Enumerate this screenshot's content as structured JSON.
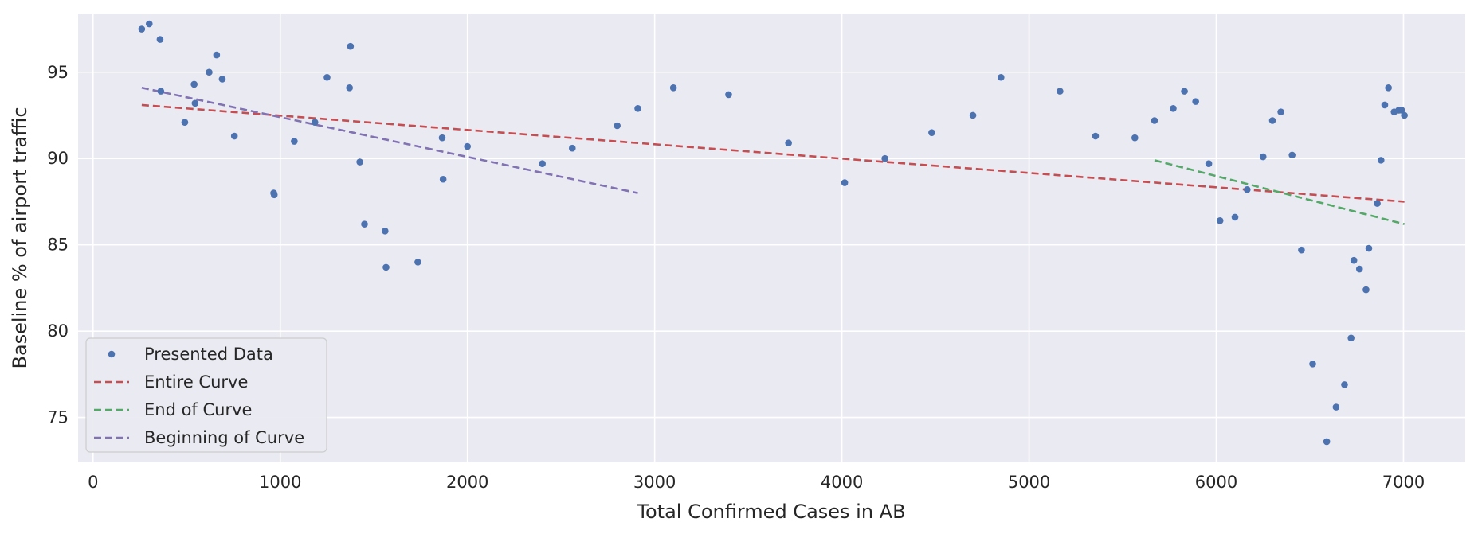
{
  "chart_data": {
    "type": "scatter",
    "title": "",
    "xlabel": "Total Confirmed Cases in AB",
    "ylabel": "Baseline % of airport traffic",
    "xlim": [
      -80,
      7330
    ],
    "ylim": [
      72.4,
      98.4
    ],
    "xticks": [
      0,
      1000,
      2000,
      3000,
      4000,
      5000,
      6000,
      7000
    ],
    "yticks": [
      75,
      80,
      85,
      90,
      95
    ],
    "grid": true,
    "legend_position": "lower-left",
    "background_color": "#eaeaf2",
    "series": [
      {
        "name": "Presented Data",
        "kind": "points",
        "color": "#4c72b0",
        "points": [
          [
            260,
            97.5
          ],
          [
            300,
            97.8
          ],
          [
            358,
            96.9
          ],
          [
            362,
            93.9
          ],
          [
            490,
            92.1
          ],
          [
            540,
            94.3
          ],
          [
            545,
            93.2
          ],
          [
            620,
            95.0
          ],
          [
            660,
            96.0
          ],
          [
            690,
            94.6
          ],
          [
            755,
            91.3
          ],
          [
            965,
            88.0
          ],
          [
            968,
            87.9
          ],
          [
            1075,
            91.0
          ],
          [
            1185,
            92.1
          ],
          [
            1250,
            94.7
          ],
          [
            1370,
            94.1
          ],
          [
            1375,
            96.5
          ],
          [
            1425,
            89.8
          ],
          [
            1450,
            86.2
          ],
          [
            1560,
            85.8
          ],
          [
            1565,
            83.7
          ],
          [
            1735,
            84.0
          ],
          [
            1865,
            91.2
          ],
          [
            1870,
            88.8
          ],
          [
            2000,
            90.7
          ],
          [
            2400,
            89.7
          ],
          [
            2560,
            90.6
          ],
          [
            2800,
            91.9
          ],
          [
            2910,
            92.9
          ],
          [
            3100,
            94.1
          ],
          [
            3395,
            93.7
          ],
          [
            3715,
            90.9
          ],
          [
            4015,
            88.6
          ],
          [
            4230,
            90.0
          ],
          [
            4480,
            91.5
          ],
          [
            4700,
            92.5
          ],
          [
            4850,
            94.7
          ],
          [
            5165,
            93.9
          ],
          [
            5355,
            91.3
          ],
          [
            5565,
            91.2
          ],
          [
            5670,
            92.2
          ],
          [
            5770,
            92.9
          ],
          [
            5830,
            93.9
          ],
          [
            5890,
            93.3
          ],
          [
            5960,
            89.7
          ],
          [
            6020,
            86.4
          ],
          [
            6100,
            86.6
          ],
          [
            6165,
            88.2
          ],
          [
            6250,
            90.1
          ],
          [
            6300,
            92.2
          ],
          [
            6345,
            92.7
          ],
          [
            6405,
            90.2
          ],
          [
            6455,
            84.7
          ],
          [
            6515,
            78.1
          ],
          [
            6590,
            73.6
          ],
          [
            6640,
            75.6
          ],
          [
            6685,
            76.9
          ],
          [
            6720,
            79.6
          ],
          [
            6735,
            84.1
          ],
          [
            6765,
            83.6
          ],
          [
            6800,
            82.4
          ],
          [
            6815,
            84.8
          ],
          [
            6860,
            87.4
          ],
          [
            6880,
            89.9
          ],
          [
            6900,
            93.1
          ],
          [
            6920,
            94.1
          ],
          [
            6950,
            92.7
          ],
          [
            6975,
            92.8
          ],
          [
            6990,
            92.8
          ],
          [
            7005,
            92.5
          ]
        ]
      },
      {
        "name": "Entire Curve",
        "kind": "dashed-line",
        "color": "#c44e52",
        "x": [
          260,
          7005
        ],
        "y": [
          93.1,
          87.5
        ]
      },
      {
        "name": "End of Curve",
        "kind": "dashed-line",
        "color": "#55a868",
        "x": [
          5670,
          7005
        ],
        "y": [
          89.9,
          86.2
        ]
      },
      {
        "name": "Beginning of Curve",
        "kind": "dashed-line",
        "color": "#8172b2",
        "x": [
          260,
          2910
        ],
        "y": [
          94.1,
          88.0
        ]
      }
    ]
  }
}
